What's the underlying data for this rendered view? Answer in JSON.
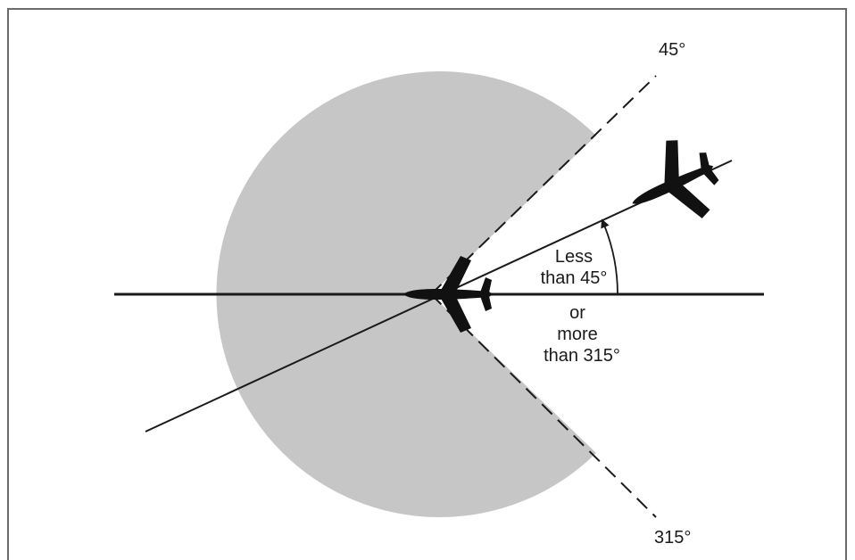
{
  "diagram": {
    "angle_top_label": "45°",
    "angle_bottom_label": "315°",
    "range_text": {
      "line1": "Less",
      "line2": "than 45°",
      "line3": "or",
      "line4": "more",
      "line5": "than 315°"
    },
    "colors": {
      "sector_fill": "#c6c6c6",
      "line": "#1a1a1a",
      "aircraft": "#111111",
      "frame": "#6b6b6b"
    }
  }
}
